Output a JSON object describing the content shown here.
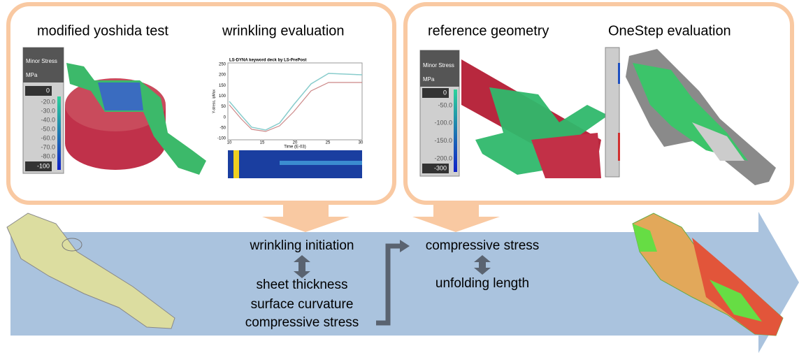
{
  "panels": [
    {
      "titles": [
        "modified yoshida test",
        "wrinkling evaluation"
      ]
    },
    {
      "titles": [
        "reference geometry",
        "OneStep evaluation"
      ]
    }
  ],
  "legend_left": {
    "title": "Minor Stress",
    "unit": "MPa",
    "top": "0",
    "ticks": [
      "-20.0",
      "-30.0",
      "-40.0",
      "-50.0",
      "-60.0",
      "-70.0",
      "-80.0"
    ],
    "bottom": "-100"
  },
  "legend_right": {
    "title": "Minor Stress",
    "unit": "MPa",
    "top": "0",
    "ticks": [
      "-50.0",
      "-100.0",
      "-150.0",
      "-200.0"
    ],
    "bottom": "-300"
  },
  "plot": {
    "title": "LS-DYNA keyword deck by LS-PrePost",
    "y_label": "Y-stress, ipMax",
    "x_label": "Time (E-03)",
    "yticks": [
      "250",
      "200",
      "150",
      "100",
      "50",
      "0",
      "-50",
      "-100"
    ],
    "xticks": [
      "10",
      "15",
      "20",
      "25",
      "30"
    ]
  },
  "flow": {
    "left": [
      "wrinkling initiation",
      "sheet thickness",
      "surface curvature",
      "compressive stress"
    ],
    "right": [
      "compressive stress",
      "unfolding length"
    ]
  }
}
